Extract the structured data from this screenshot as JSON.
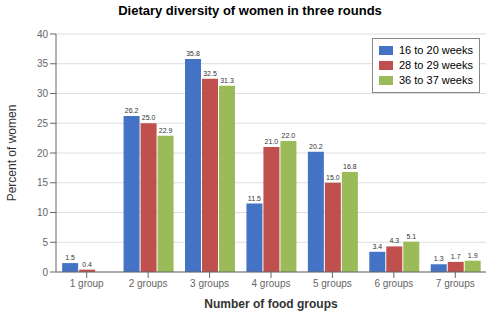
{
  "chart_data": {
    "type": "bar",
    "title": "Dietary diversity of women in three rounds",
    "xlabel": "Number of food groups",
    "ylabel": "Percent of women",
    "categories": [
      "1 group",
      "2 groups",
      "3 groups",
      "4 groups",
      "5 groups",
      "6 groups",
      "7 groups"
    ],
    "series": [
      {
        "name": "16 to 20 weeks",
        "color": "#4472C4",
        "values": [
          1.5,
          26.2,
          35.8,
          11.5,
          20.2,
          3.4,
          1.3
        ],
        "value_labels": [
          "1.5",
          "26.2",
          "35.8",
          "11.5",
          "20.2",
          "3.4",
          "1.3"
        ]
      },
      {
        "name": "28 to 29 weeks",
        "color": "#C0504D",
        "values": [
          0.4,
          25.0,
          32.5,
          21.0,
          15.0,
          4.3,
          1.7
        ],
        "value_labels": [
          "0.4",
          "25.0",
          "32.5",
          "21.0",
          "15.0",
          "4.3",
          "1.7"
        ]
      },
      {
        "name": "36 to 37 weeks",
        "color": "#9BBB59",
        "values": [
          0.0,
          22.9,
          31.3,
          22.0,
          16.8,
          5.1,
          1.9
        ],
        "value_labels": [
          null,
          "22.9",
          "31.3",
          "22.0",
          "16.8",
          "5.1",
          "1.9"
        ]
      }
    ],
    "ylim": [
      0,
      40
    ],
    "yticks": [
      0,
      5,
      10,
      15,
      20,
      25,
      30,
      35,
      40
    ],
    "grid": true,
    "legend": "upper right",
    "data_labels": true
  }
}
